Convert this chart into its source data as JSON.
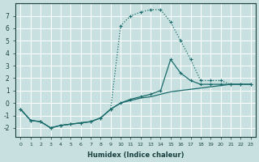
{
  "xlabel": "Humidex (Indice chaleur)",
  "background_color": "#c8e0e0",
  "grid_color": "#ffffff",
  "line_color": "#1a6b6b",
  "xlim": [
    -0.5,
    23.5
  ],
  "ylim": [
    -2.7,
    8.0
  ],
  "xticks": [
    0,
    1,
    2,
    3,
    4,
    5,
    6,
    7,
    8,
    9,
    10,
    11,
    12,
    13,
    14,
    15,
    16,
    17,
    18,
    19,
    20,
    21,
    22,
    23
  ],
  "yticks": [
    -2,
    -1,
    0,
    1,
    2,
    3,
    4,
    5,
    6,
    7
  ],
  "curveA_x": [
    0,
    1,
    2,
    3,
    4,
    5,
    6,
    7,
    8,
    9,
    10,
    11,
    12,
    13,
    14,
    15,
    16,
    17,
    18,
    19,
    20,
    21,
    22,
    23
  ],
  "curveA_y": [
    -0.5,
    -1.4,
    -1.5,
    -2.0,
    -1.8,
    -1.7,
    -1.6,
    -1.5,
    -1.2,
    -0.5,
    6.2,
    7.0,
    7.3,
    7.5,
    7.5,
    6.5,
    5.0,
    3.5,
    1.8,
    1.8,
    1.8,
    1.5,
    1.5,
    1.5
  ],
  "curveB_x": [
    0,
    1,
    2,
    3,
    4,
    5,
    6,
    7,
    8,
    9,
    10,
    11,
    12,
    13,
    14,
    15,
    16,
    17,
    18,
    19,
    20,
    21,
    22,
    23
  ],
  "curveB_y": [
    -0.5,
    -1.4,
    -1.5,
    -2.0,
    -1.8,
    -1.7,
    -1.6,
    -1.5,
    -1.2,
    -0.5,
    0.0,
    0.3,
    0.5,
    0.7,
    1.0,
    3.5,
    2.4,
    1.8,
    1.5,
    1.5,
    1.5,
    1.5,
    1.5,
    1.5
  ],
  "curveC_x": [
    0,
    1,
    2,
    3,
    4,
    5,
    6,
    7,
    8,
    9,
    10,
    11,
    12,
    13,
    14,
    15,
    16,
    17,
    18,
    19,
    20,
    21,
    22,
    23
  ],
  "curveC_y": [
    -0.5,
    -1.4,
    -1.5,
    -2.0,
    -1.8,
    -1.7,
    -1.6,
    -1.5,
    -1.2,
    -0.5,
    0.0,
    0.2,
    0.4,
    0.5,
    0.7,
    0.9,
    1.0,
    1.1,
    1.2,
    1.3,
    1.4,
    1.5,
    1.5,
    1.5
  ]
}
